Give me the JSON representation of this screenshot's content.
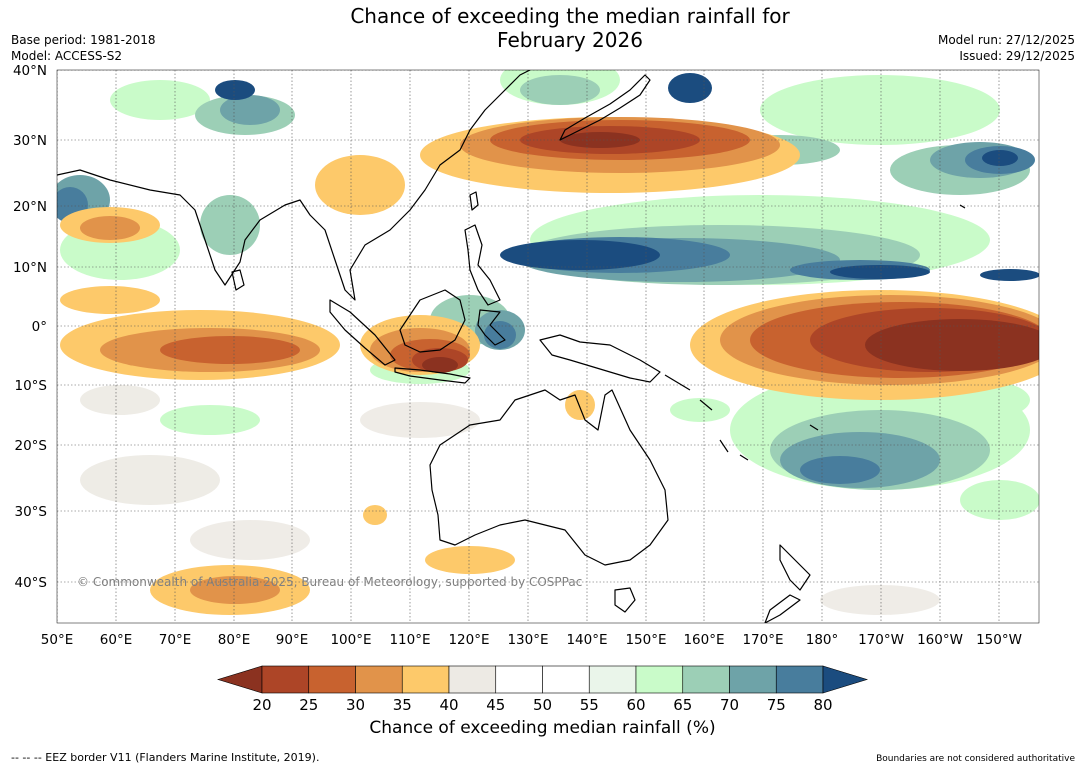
{
  "header": {
    "title_line1": "Chance of exceeding the median rainfall for",
    "title_line2": "February 2026",
    "base_period": "Base period: 1981-2018",
    "model": "Model: ACCESS-S2",
    "model_run": "Model run: 27/12/2025",
    "issued": "Issued: 29/12/2025"
  },
  "map": {
    "lat_labels": [
      "40°N",
      "30°N",
      "20°N",
      "10°N",
      "0°",
      "10°S",
      "20°S",
      "30°S",
      "40°S"
    ],
    "lon_labels": [
      "50°E",
      "60°E",
      "70°E",
      "80°E",
      "90°E",
      "100°E",
      "110°E",
      "120°E",
      "130°E",
      "140°E",
      "150°E",
      "160°E",
      "170°E",
      "180°",
      "170°W",
      "160°W",
      "150°W"
    ],
    "copyright": "© Commonwealth of Australia 2025, Bureau of Meteorology, supported by COSPPac",
    "lat_range": [
      -46,
      40
    ],
    "lon_range": [
      50,
      217
    ]
  },
  "colorbar": {
    "ticks": [
      "20",
      "25",
      "30",
      "35",
      "40",
      "45",
      "50",
      "55",
      "60",
      "65",
      "70",
      "75",
      "80"
    ],
    "colors": [
      "#8b3220",
      "#ad4527",
      "#c8622f",
      "#e1934a",
      "#fdc96a",
      "#edeae4",
      "#ffffff",
      "#ffffff",
      "#eaf5ea",
      "#c9fbc9",
      "#9ccfb6",
      "#6ea3a8",
      "#487d9d",
      "#1b4c7f"
    ],
    "title": "Chance of exceeding median rainfall (%)"
  },
  "footer": {
    "eez_note": "--  --  -- EEZ border V11 (Flanders Marine Institute, 2019).",
    "boundaries_note": "Boundaries are not considered authoritative"
  }
}
